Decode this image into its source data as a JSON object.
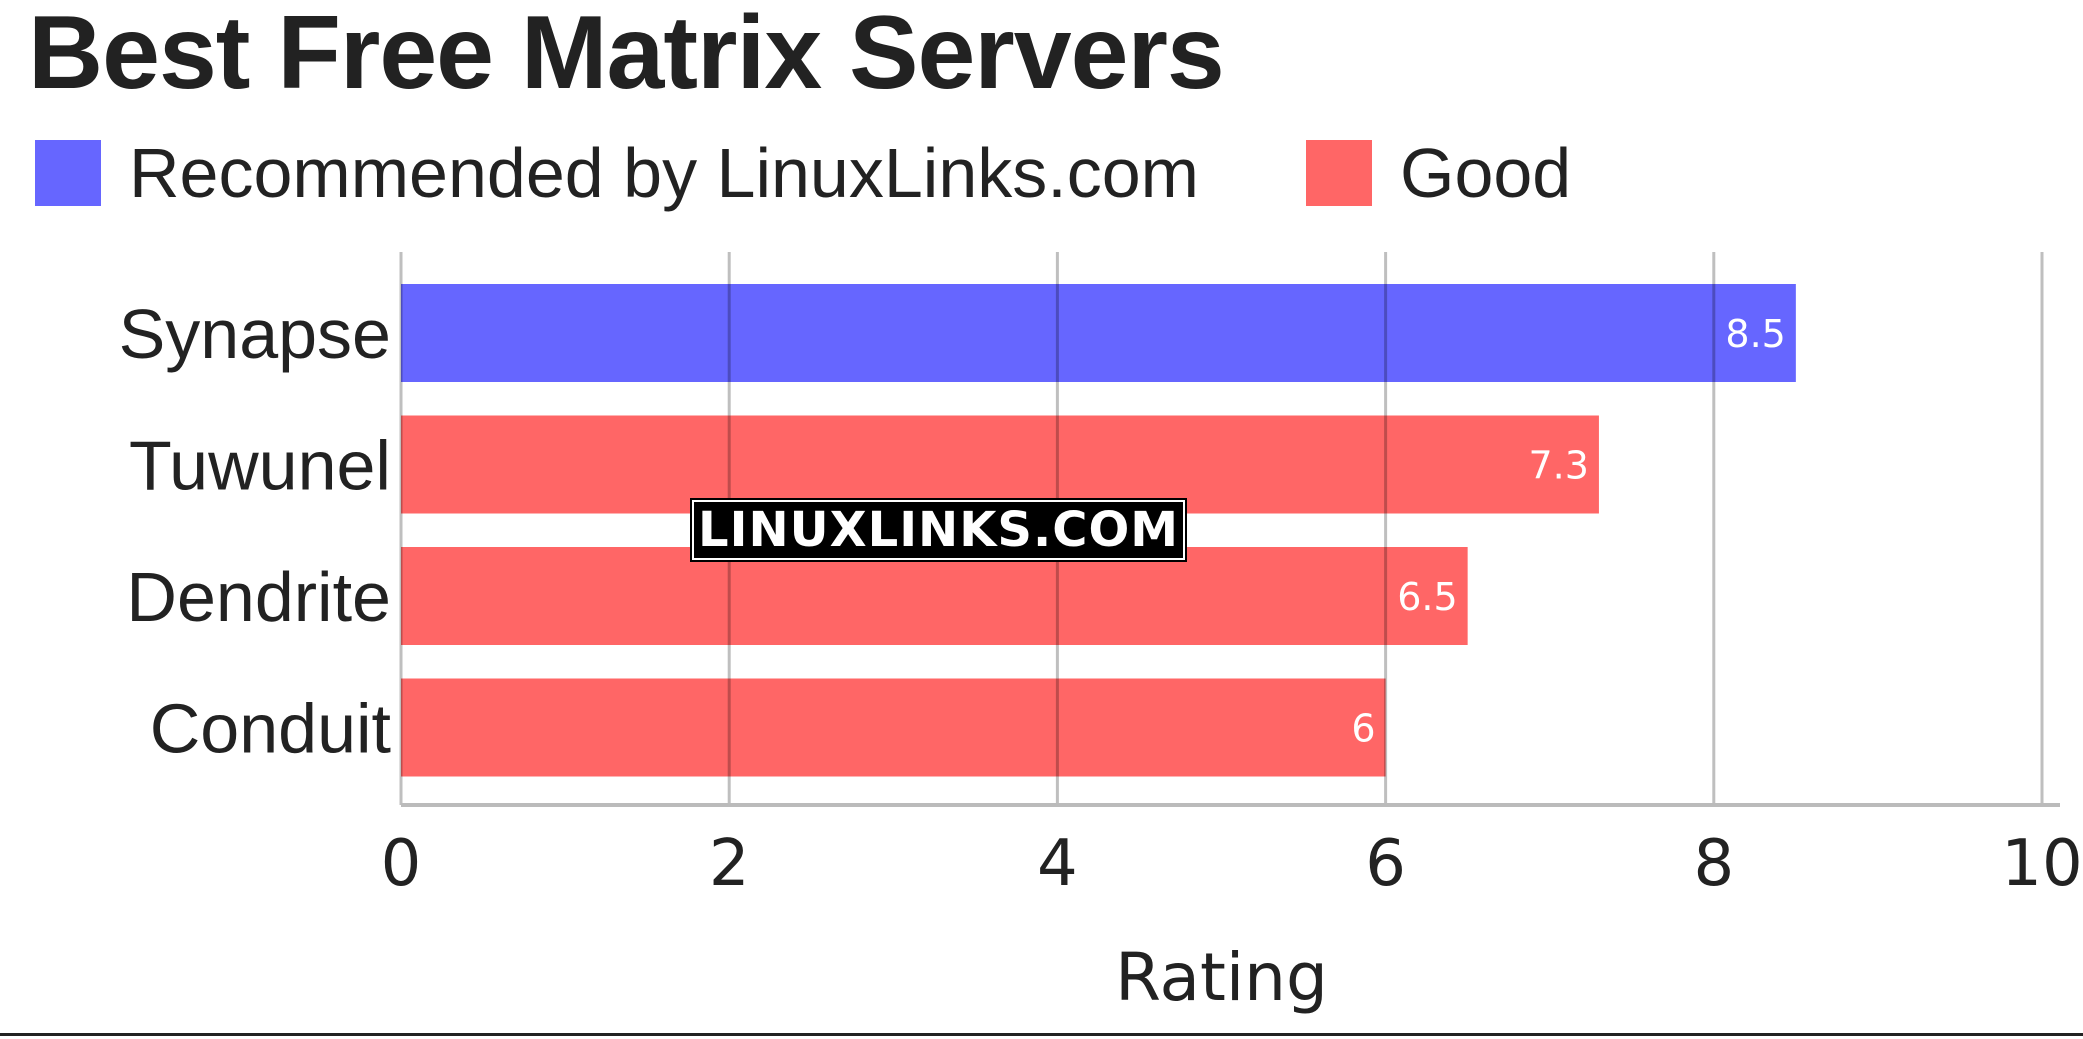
{
  "chart_data": {
    "type": "bar",
    "orientation": "horizontal",
    "title": "Best Free Matrix Servers",
    "categories": [
      "Synapse",
      "Tuwunel",
      "Dendrite",
      "Conduit"
    ],
    "values": [
      8.5,
      7.3,
      6.5,
      6
    ],
    "value_labels": [
      "8.5",
      "7.3",
      "6.5",
      "6"
    ],
    "bar_groups": [
      "Recommended by LinuxLinks.com",
      "Good",
      "Good",
      "Good"
    ],
    "legend": [
      {
        "name": "Recommended by LinuxLinks.com",
        "color": "#6666ff"
      },
      {
        "name": "Good",
        "color": "#ff6666"
      }
    ],
    "legend_placement": "top-left",
    "xlabel": "Rating",
    "ylabel": "",
    "xlim": [
      0,
      10
    ],
    "xticks": [
      "0",
      "2",
      "4",
      "6",
      "8",
      "10"
    ],
    "grid": true
  },
  "watermark": "LINUXLINKS.COM"
}
